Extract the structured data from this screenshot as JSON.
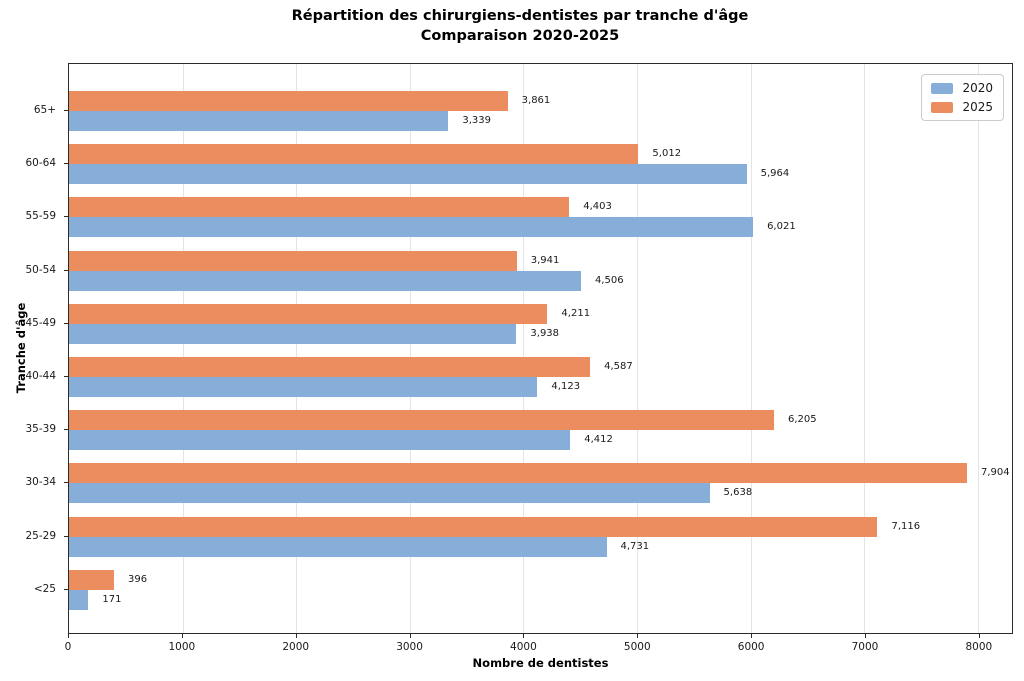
{
  "title": {
    "line1": "Répartition des chirurgiens-dentistes par tranche d'âge",
    "line2": "Comparaison 2020-2025"
  },
  "chart_data": {
    "type": "bar",
    "orientation": "horizontal",
    "title": "Répartition des chirurgiens-dentistes par tranche d'âge — Comparaison 2020-2025",
    "xlabel": "Nombre de dentistes",
    "ylabel": "Tranche d'âge",
    "categories": [
      "65+",
      "60-64",
      "55-59",
      "50-54",
      "45-49",
      "40-44",
      "35-39",
      "30-34",
      "25-29",
      "<25"
    ],
    "series": [
      {
        "name": "2020",
        "color": "#87ADD9",
        "values": [
          3339,
          5964,
          6021,
          4506,
          3938,
          4123,
          4412,
          5638,
          4731,
          171
        ],
        "labels": [
          "3,339",
          "5,964",
          "6,021",
          "4,506",
          "3,938",
          "4,123",
          "4,412",
          "5,638",
          "4,731",
          "171"
        ]
      },
      {
        "name": "2025",
        "color": "#EC8D5F",
        "values": [
          3861,
          5012,
          4403,
          3941,
          4211,
          4587,
          6205,
          7904,
          7116,
          396
        ],
        "labels": [
          "3,861",
          "5,012",
          "4,403",
          "3,941",
          "4,211",
          "4,587",
          "6,205",
          "7,904",
          "7,116",
          "396"
        ]
      }
    ],
    "xlim": [
      0,
      8300
    ],
    "xticks": [
      0,
      1000,
      2000,
      3000,
      4000,
      5000,
      6000,
      7000,
      8000
    ],
    "grid": "vertical-only",
    "legend_position": "upper-right"
  },
  "legend": {
    "items": [
      {
        "label": "2020",
        "color": "#87ADD9"
      },
      {
        "label": "2025",
        "color": "#EC8D5F"
      }
    ]
  }
}
